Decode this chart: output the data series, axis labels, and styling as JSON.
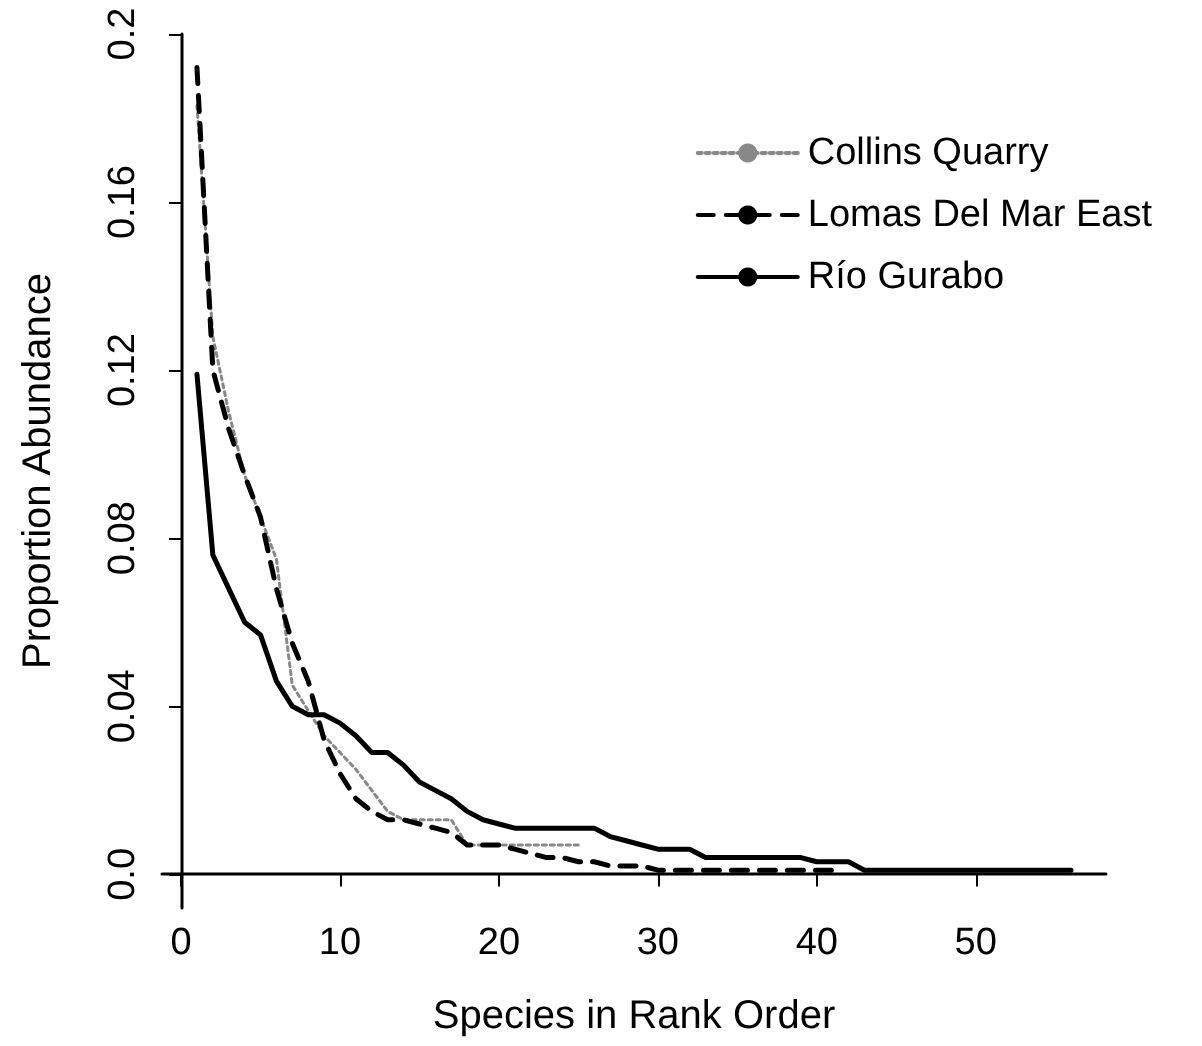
{
  "chart_data": {
    "type": "line",
    "xlabel": "Species in Rank Order",
    "ylabel": "Proportion Abundance",
    "xlim": [
      -1.2,
      58.2
    ],
    "xticks": [
      0,
      10,
      20,
      30,
      40,
      50
    ],
    "ylim": [
      -0.008,
      0.2
    ],
    "yticks": [
      {
        "value": 0,
        "label": "0.0"
      },
      0.04,
      0.08,
      0.12,
      0.16,
      {
        "value": 0.2,
        "label": "0.2"
      }
    ],
    "grid": false,
    "legend": "top right",
    "marker": "none",
    "series": [
      {
        "name": "Collins Quarry",
        "color": "#888888",
        "line_style": "dotted",
        "x": [
          1,
          2,
          3,
          4,
          5,
          6,
          7,
          8,
          9,
          10,
          11,
          12,
          13,
          14,
          15,
          16,
          17,
          18,
          19,
          20,
          21,
          22,
          23,
          24,
          25
        ],
        "values": [
          0.183,
          0.128,
          0.11,
          0.095,
          0.085,
          0.075,
          0.045,
          0.039,
          0.033,
          0.029,
          0.025,
          0.02,
          0.015,
          0.013,
          0.013,
          0.013,
          0.013,
          0.007,
          0.007,
          0.007,
          0.007,
          0.007,
          0.007,
          0.007,
          0.007
        ]
      },
      {
        "name": "Lomas Del Mar East",
        "color": "#000000",
        "line_style": "dashed",
        "x": [
          1,
          2,
          3,
          4,
          5,
          6,
          7,
          8,
          9,
          10,
          11,
          12,
          13,
          14,
          15,
          16,
          17,
          18,
          19,
          20,
          21,
          22,
          23,
          24,
          25,
          26,
          27,
          28,
          29,
          30,
          31,
          32,
          33,
          34,
          35,
          36,
          37,
          38,
          39,
          40,
          41
        ],
        "values": [
          0.192,
          0.12,
          0.106,
          0.095,
          0.085,
          0.068,
          0.055,
          0.046,
          0.032,
          0.024,
          0.018,
          0.015,
          0.013,
          0.013,
          0.012,
          0.011,
          0.01,
          0.007,
          0.007,
          0.007,
          0.006,
          0.005,
          0.004,
          0.004,
          0.003,
          0.003,
          0.002,
          0.002,
          0.002,
          0.001,
          0.001,
          0.001,
          0.001,
          0.001,
          0.001,
          0.001,
          0.001,
          0.001,
          0.001,
          0.001,
          0.001
        ]
      },
      {
        "name": "Río Gurabo",
        "color": "#000000",
        "line_style": "solid",
        "x": [
          1,
          2,
          3,
          4,
          5,
          6,
          7,
          8,
          9,
          10,
          11,
          12,
          13,
          14,
          15,
          16,
          17,
          18,
          19,
          20,
          21,
          22,
          23,
          24,
          25,
          26,
          27,
          28,
          29,
          30,
          31,
          32,
          33,
          34,
          35,
          36,
          37,
          38,
          39,
          40,
          41,
          42,
          43,
          44,
          45,
          46,
          47,
          48,
          49,
          50,
          51,
          52,
          53,
          54,
          55,
          56
        ],
        "values": [
          0.119,
          0.076,
          0.068,
          0.06,
          0.057,
          0.046,
          0.04,
          0.038,
          0.038,
          0.036,
          0.033,
          0.029,
          0.029,
          0.026,
          0.022,
          0.02,
          0.018,
          0.015,
          0.013,
          0.012,
          0.011,
          0.011,
          0.011,
          0.011,
          0.011,
          0.011,
          0.009,
          0.008,
          0.007,
          0.006,
          0.006,
          0.006,
          0.004,
          0.004,
          0.004,
          0.004,
          0.004,
          0.004,
          0.004,
          0.003,
          0.003,
          0.003,
          0.001,
          0.001,
          0.001,
          0.001,
          0.001,
          0.001,
          0.001,
          0.001,
          0.001,
          0.001,
          0.001,
          0.001,
          0.001,
          0.001
        ]
      }
    ]
  }
}
